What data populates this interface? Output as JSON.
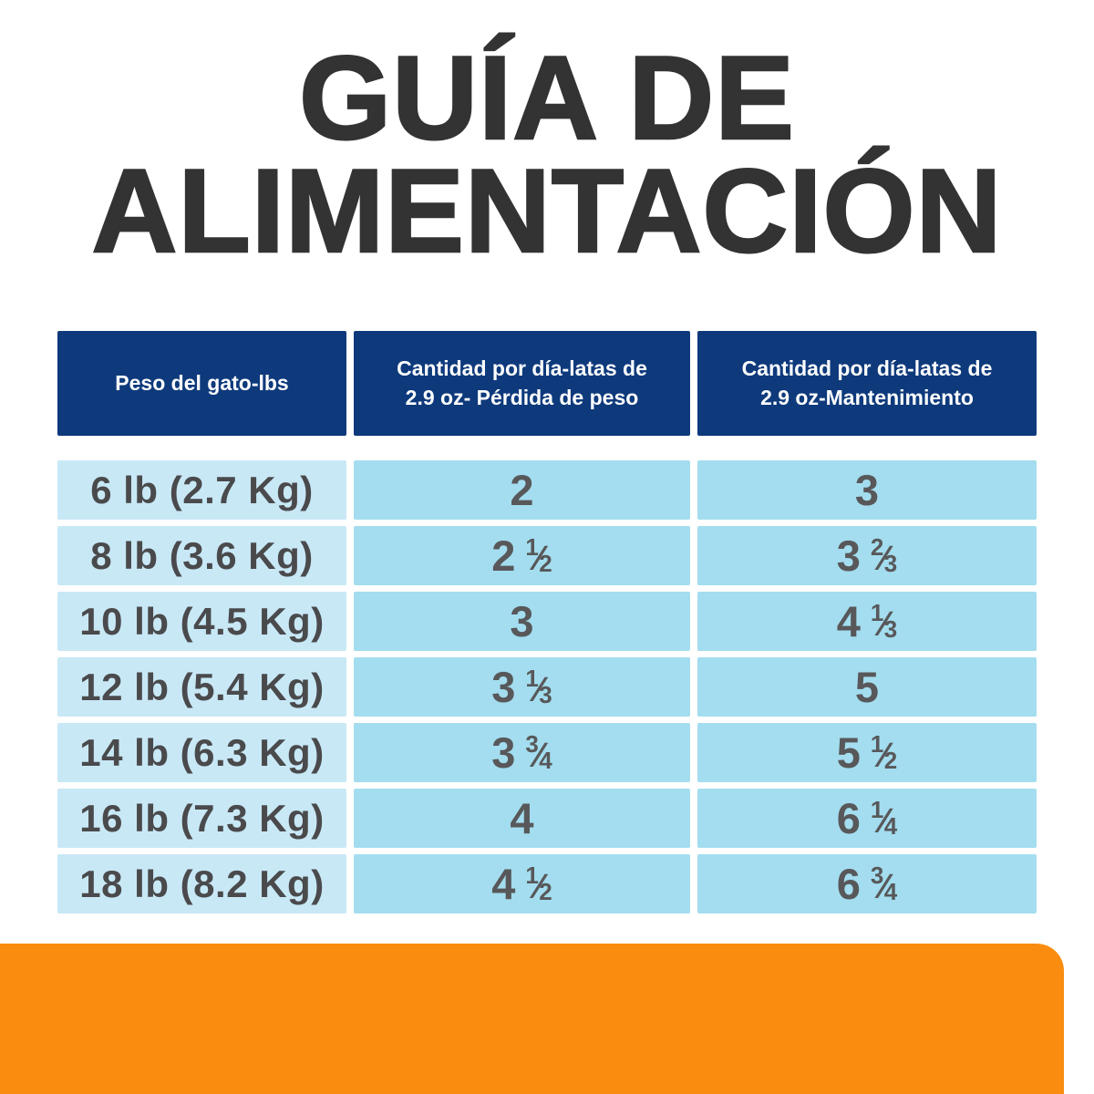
{
  "title": {
    "line1": "GUÍA DE",
    "line2": "ALIMENTACIÓN"
  },
  "table": {
    "headers": [
      {
        "lines": [
          "Peso del gato-lbs"
        ]
      },
      {
        "lines": [
          "Cantidad por día-latas de",
          "2.9 oz- Pérdida de peso"
        ]
      },
      {
        "lines": [
          "Cantidad por día-latas de",
          "2.9 oz-Mantenimiento"
        ]
      }
    ],
    "rows": [
      {
        "weight": "6 lb (2.7 Kg)",
        "loss": {
          "whole": "2"
        },
        "maintenance": {
          "whole": "3"
        }
      },
      {
        "weight": "8 lb (3.6 Kg)",
        "loss": {
          "whole": "2",
          "num": "1",
          "den": "2"
        },
        "maintenance": {
          "whole": "3",
          "num": "2",
          "den": "3"
        }
      },
      {
        "weight": "10 lb (4.5 Kg)",
        "loss": {
          "whole": "3"
        },
        "maintenance": {
          "whole": "4",
          "num": "1",
          "den": "3"
        }
      },
      {
        "weight": "12 lb (5.4 Kg)",
        "loss": {
          "whole": "3",
          "num": "1",
          "den": "3"
        },
        "maintenance": {
          "whole": "5"
        }
      },
      {
        "weight": "14 lb (6.3 Kg)",
        "loss": {
          "whole": "3",
          "num": "3",
          "den": "4"
        },
        "maintenance": {
          "whole": "5",
          "num": "1",
          "den": "2"
        }
      },
      {
        "weight": "16 lb (7.3 Kg)",
        "loss": {
          "whole": "4"
        },
        "maintenance": {
          "whole": "6",
          "num": "1",
          "den": "4"
        }
      },
      {
        "weight": "18 lb (8.2 Kg)",
        "loss": {
          "whole": "4",
          "num": "1",
          "den": "2"
        },
        "maintenance": {
          "whole": "6",
          "num": "3",
          "den": "4"
        }
      }
    ]
  },
  "colors": {
    "header_bg": "#0e3a7c",
    "weight_column_bg": "#c8e8f6",
    "amount_columns_bg": "#a3ddef",
    "accent_orange": "#fa8c0f",
    "title_text": "#333333",
    "weight_text": "#4a4a4c",
    "number_text": "#58585a",
    "background": "#ffffff"
  },
  "chart_data": {
    "type": "table",
    "title": "GUÍA DE ALIMENTACIÓN",
    "columns": [
      "Peso del gato-lbs",
      "Cantidad por día-latas de 2.9 oz- Pérdida de peso",
      "Cantidad por día-latas de 2.9 oz-Mantenimiento"
    ],
    "rows": [
      [
        "6 lb (2.7 Kg)",
        "2",
        "3"
      ],
      [
        "8 lb (3.6 Kg)",
        "2 1/2",
        "3 2/3"
      ],
      [
        "10 lb (4.5 Kg)",
        "3",
        "4 1/3"
      ],
      [
        "12 lb (5.4 Kg)",
        "3 1/3",
        "5"
      ],
      [
        "14 lb (6.3 Kg)",
        "3 3/4",
        "5 1/2"
      ],
      [
        "16 lb (7.3 Kg)",
        "4",
        "6 1/4"
      ],
      [
        "18 lb (8.2 Kg)",
        "4 1/2",
        "6 3/4"
      ]
    ]
  }
}
